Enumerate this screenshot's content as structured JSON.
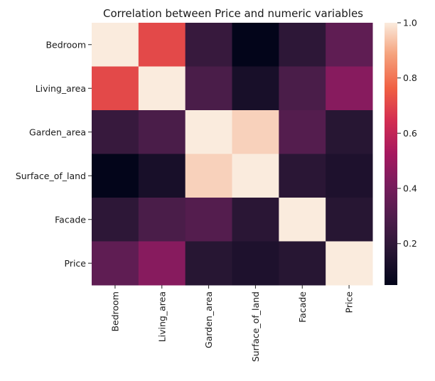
{
  "chart_data": {
    "type": "heatmap",
    "title": "Correlation between Price and numeric variables",
    "x_categories": [
      "Bedroom",
      "Living_area",
      "Garden_area",
      "Surface_of_land",
      "Facade",
      "Price"
    ],
    "y_categories": [
      "Bedroom",
      "Living_area",
      "Garden_area",
      "Surface_of_land",
      "Facade",
      "Price"
    ],
    "values": [
      [
        1.0,
        0.71,
        0.22,
        0.05,
        0.19,
        0.34
      ],
      [
        0.71,
        1.0,
        0.28,
        0.12,
        0.28,
        0.45
      ],
      [
        0.22,
        0.28,
        1.0,
        0.96,
        0.31,
        0.17
      ],
      [
        0.05,
        0.12,
        0.96,
        1.0,
        0.18,
        0.14
      ],
      [
        0.19,
        0.28,
        0.31,
        0.18,
        1.0,
        0.17
      ],
      [
        0.34,
        0.45,
        0.17,
        0.14,
        0.17,
        1.0
      ]
    ],
    "colorbar": {
      "colormap": "rocket",
      "range": [
        0.05,
        1.0
      ],
      "tick_values": [
        0.2,
        0.4,
        0.6,
        0.8,
        1.0
      ],
      "tick_labels": [
        "0.2",
        "0.4",
        "0.6",
        "0.8",
        "1.0"
      ]
    },
    "xlabel": "",
    "ylabel": ""
  }
}
